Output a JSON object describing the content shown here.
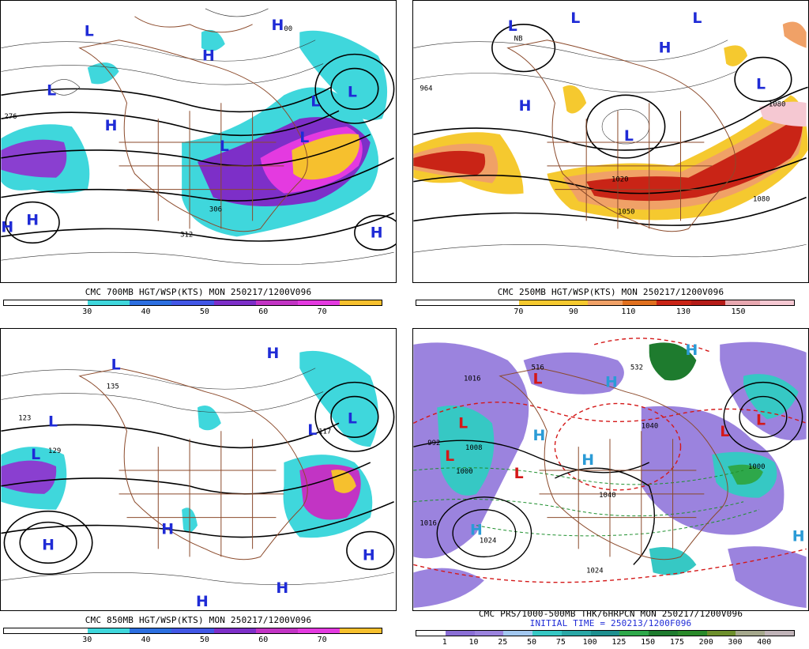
{
  "panels": [
    {
      "id": "p700",
      "caption": "CMC 700MB HGT/WSP(KTS) MON 250217/1200V096",
      "colorbar": {
        "colors": [
          "#ffffff",
          "#ffffff",
          "#3fd7dc",
          "#2c6fe0",
          "#4257e6",
          "#7d2fc8",
          "#c234c4",
          "#e43ae0",
          "#f6c02e"
        ],
        "ticks": [
          "30",
          "40",
          "50",
          "60",
          "70"
        ]
      },
      "labels": [
        "L",
        "L",
        "L",
        "L",
        "L",
        "L",
        "H",
        "H",
        "H",
        "H",
        "H",
        "H",
        "276",
        "306",
        "312",
        "00"
      ]
    },
    {
      "id": "p250",
      "caption": "CMC 250MB HGT/WSP(KTS) MON 250217/1200V096",
      "colorbar": {
        "colors": [
          "#ffffff",
          "#ffffff",
          "#ffffff",
          "#f5c92f",
          "#f5c92f",
          "#f0a167",
          "#e0701f",
          "#c92416",
          "#b51c18",
          "#e8a8b0",
          "#f5c8d2"
        ],
        "ticks": [
          "70",
          "90",
          "110",
          "130",
          "150"
        ]
      },
      "labels": [
        "L",
        "L",
        "L",
        "L",
        "L",
        "H",
        "H",
        "964",
        "1080",
        "1050",
        "1020",
        "1080",
        "NB"
      ]
    },
    {
      "id": "p850",
      "caption": "CMC 850MB HGT/WSP(KTS) MON 250217/1200V096",
      "colorbar": {
        "colors": [
          "#ffffff",
          "#ffffff",
          "#3fd7dc",
          "#2c6fe0",
          "#4257e6",
          "#7d2fc8",
          "#c234c4",
          "#e43ae0",
          "#f6c02e"
        ],
        "ticks": [
          "30",
          "40",
          "50",
          "60",
          "70"
        ]
      },
      "labels": [
        "L",
        "L",
        "L",
        "L",
        "L",
        "H",
        "H",
        "H",
        "H",
        "H",
        "H",
        "123",
        "129",
        "135",
        "117"
      ]
    },
    {
      "id": "pprs",
      "caption": "CMC PRS/1000-500MB THK/6HRPCN MON 250217/1200V096",
      "caption2": "INITIAL TIME = 250213/1200F096",
      "colorbar": {
        "colors": [
          "#ffffff",
          "#8b6fd6",
          "#9b83de",
          "#a2c8f0",
          "#36c8c4",
          "#2aa7a6",
          "#1d8f8f",
          "#2ea84a",
          "#1e7b2e",
          "#2a8a2a",
          "#6d8f2c",
          "#a5a88c",
          "#c0b3b8"
        ],
        "ticks": [
          "1",
          "10",
          "25",
          "50",
          "75",
          "100",
          "125",
          "150",
          "175",
          "200",
          "300",
          "400"
        ]
      },
      "labels": [
        "L",
        "L",
        "L",
        "L",
        "L",
        "L",
        "H",
        "H",
        "H",
        "H",
        "H",
        "H",
        "1016",
        "1024",
        "1024",
        "1040",
        "1040",
        "1008",
        "992",
        "1016",
        "1000",
        "1000",
        "516",
        "532"
      ]
    }
  ]
}
